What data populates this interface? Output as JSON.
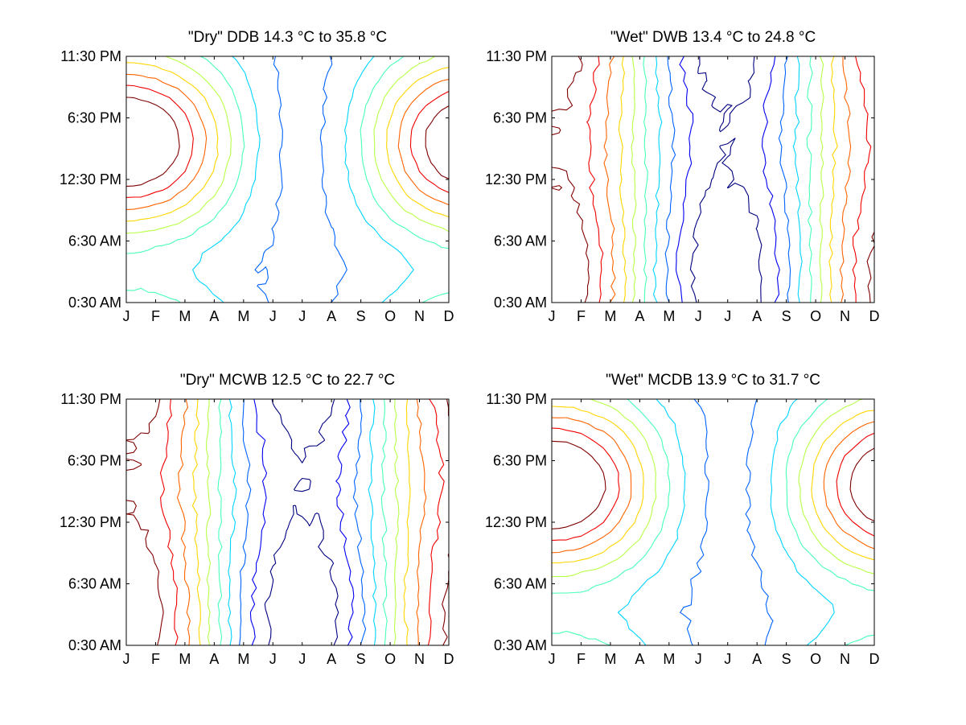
{
  "figure": {
    "x_ticks": [
      "J",
      "F",
      "M",
      "A",
      "M",
      "J",
      "J",
      "A",
      "S",
      "O",
      "N",
      "D"
    ],
    "y_ticks": [
      "0:30 AM",
      "6:30 AM",
      "12:30 PM",
      "6:30 PM",
      "11:30 PM"
    ]
  },
  "chart_data": [
    {
      "type": "contour",
      "title": "\"Dry\" DDB  14.3 °C to  35.8 °C",
      "min_c": 14.3,
      "max_c": 35.8,
      "pattern": "saddle",
      "levels": 10,
      "colormap": "jet",
      "x_range": [
        "J",
        "D"
      ],
      "y_range": [
        "0:30 AM",
        "11:30 PM"
      ],
      "grid": false
    },
    {
      "type": "contour",
      "title": "\"Wet\" DWB  13.4 °C to  24.8 °C",
      "min_c": 13.4,
      "max_c": 24.8,
      "pattern": "seasonal",
      "levels": 10,
      "colormap": "jet",
      "x_range": [
        "J",
        "D"
      ],
      "y_range": [
        "0:30 AM",
        "11:30 PM"
      ],
      "grid": false
    },
    {
      "type": "contour",
      "title": "\"Dry\" MCWB  12.5 °C to  22.7 °C",
      "min_c": 12.5,
      "max_c": 22.7,
      "pattern": "seasonal",
      "levels": 10,
      "colormap": "jet",
      "x_range": [
        "J",
        "D"
      ],
      "y_range": [
        "0:30 AM",
        "11:30 PM"
      ],
      "grid": false
    },
    {
      "type": "contour",
      "title": "\"Wet\" MCDB  13.9 °C to  31.7 °C",
      "min_c": 13.9,
      "max_c": 31.7,
      "pattern": "saddle",
      "levels": 10,
      "colormap": "jet",
      "x_range": [
        "J",
        "D"
      ],
      "y_range": [
        "0:30 AM",
        "11:30 PM"
      ],
      "grid": false
    }
  ]
}
